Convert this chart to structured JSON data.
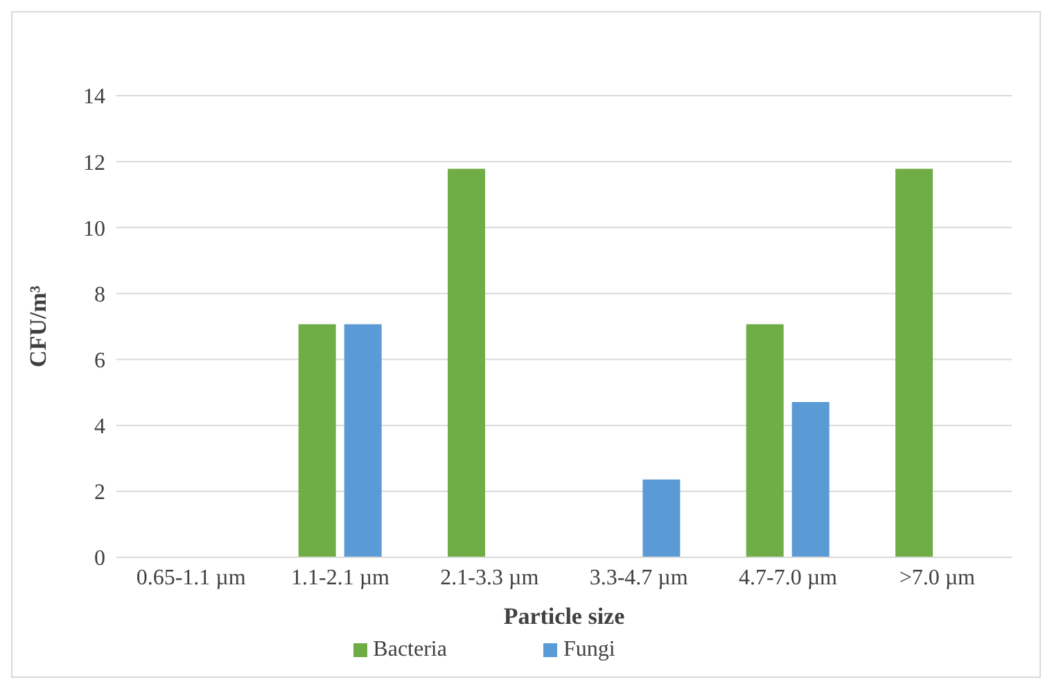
{
  "chart_data": {
    "type": "bar",
    "xlabel": "Particle size",
    "ylabel": "CFU/m³",
    "categories": [
      "0.65-1.1 µm",
      "1.1-2.1 µm",
      "2.1-3.3 µm",
      "3.3-4.7 µm",
      "4.7-7.0 µm",
      ">7.0 µm"
    ],
    "series": [
      {
        "name": "Bacteria",
        "color": "#70ad47",
        "values": [
          0,
          7.07,
          11.78,
          0,
          7.07,
          11.78
        ]
      },
      {
        "name": "Fungi",
        "color": "#5b9bd5",
        "values": [
          0,
          7.07,
          0,
          2.36,
          4.71,
          0
        ]
      }
    ],
    "ylim": [
      0,
      14
    ],
    "yticks": [
      0,
      2,
      4,
      6,
      8,
      10,
      12,
      14
    ],
    "grid": "y",
    "legend": "bottom"
  }
}
